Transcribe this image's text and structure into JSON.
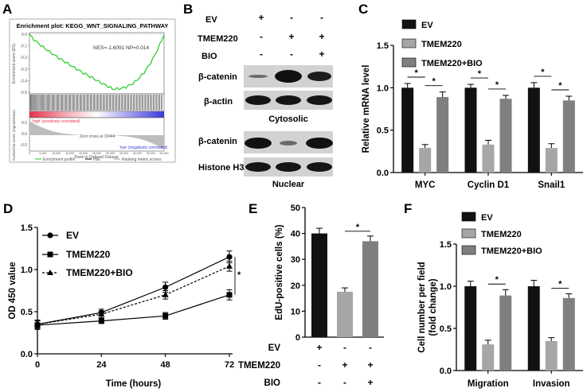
{
  "panels": {
    "A": {
      "letter": "A",
      "title": "Enrichment plot: KEGG_WNT_SIGNALING_PATHWAY",
      "stats": "NES=-1.6091 NP=0.014",
      "ylabel_top": "Enrichment score (ES)",
      "ylabel_bottom": "Ranked list metric (Signal2Noise)",
      "xlabel": "Rank in Ordered Dataset",
      "pos_label": "'high' (positively correlated)",
      "neg_label": "'low' (negatively correlated)",
      "zero_cross": "Zero cross at 10444",
      "es_ticks": [
        "0.0",
        "-0.1",
        "-0.2",
        "-0.3",
        "-0.4",
        "-0.5"
      ],
      "metric_ticks": [
        "0.5",
        "0.0",
        "-0.5"
      ],
      "x_ticks": [
        "0",
        "5,000",
        "10,000",
        "15,000",
        "20,000",
        "25,000",
        "30,000",
        "35,000",
        "40,000",
        "45,000",
        "50,000"
      ],
      "legend": [
        "Enrichment profile",
        "Hits",
        "Ranking metric scores"
      ],
      "colors": {
        "curve": "#22cc22",
        "pos": "#e8314a",
        "neg": "#3a3ad8"
      }
    },
    "B": {
      "letter": "B",
      "conditions": [
        "EV",
        "TMEM220",
        "BIO"
      ],
      "signs": [
        [
          "+",
          "-",
          "-"
        ],
        [
          "-",
          "+",
          "+"
        ],
        [
          "-",
          "-",
          "+"
        ]
      ],
      "bands_cyto": [
        "β-catenin",
        "β-actin"
      ],
      "cyto_label": "Cytosolic",
      "bands_nuc": [
        "β-catenin",
        "Histone H3"
      ],
      "nuc_label": "Nuclear"
    },
    "C": {
      "letter": "C",
      "sig": "*"
    },
    "D": {
      "letter": "D",
      "sig": "*"
    },
    "E": {
      "letter": "E",
      "conditions": [
        "EV",
        "TMEM220",
        "BIO"
      ],
      "signs": [
        [
          "+",
          "-",
          "-"
        ],
        [
          "-",
          "+",
          "+"
        ],
        [
          "-",
          "-",
          "+"
        ]
      ],
      "sig": "*"
    },
    "F": {
      "letter": "F",
      "sig": "*"
    }
  },
  "chart_data": [
    {
      "id": "C",
      "type": "bar",
      "categories": [
        "MYC",
        "Cyclin D1",
        "Snail1"
      ],
      "series": [
        {
          "name": "EV",
          "values": [
            1.0,
            1.0,
            1.0
          ],
          "errors": [
            0.05,
            0.04,
            0.06
          ],
          "color": "#111111"
        },
        {
          "name": "TMEM220",
          "values": [
            0.29,
            0.33,
            0.29
          ],
          "errors": [
            0.04,
            0.05,
            0.05
          ],
          "color": "#a6a6a6"
        },
        {
          "name": "TMEM220+BIO",
          "values": [
            0.89,
            0.87,
            0.85
          ],
          "errors": [
            0.06,
            0.04,
            0.05
          ],
          "color": "#7f7f7f"
        }
      ],
      "ylabel": "Relative mRNA level",
      "ylim": [
        0,
        1.5
      ],
      "yticks": [
        "0.0",
        "0.5",
        "1.0",
        "1.5"
      ]
    },
    {
      "id": "D",
      "type": "line",
      "x": [
        0,
        24,
        48,
        72
      ],
      "xticks": [
        "0",
        "24",
        "48",
        "72"
      ],
      "series": [
        {
          "name": "EV",
          "values": [
            0.35,
            0.49,
            0.79,
            1.15
          ],
          "errors": [
            0.05,
            0.04,
            0.06,
            0.07
          ],
          "marker": "circle",
          "style": "solid"
        },
        {
          "name": "TMEM220",
          "values": [
            0.34,
            0.39,
            0.45,
            0.7
          ],
          "errors": [
            0.05,
            0.03,
            0.04,
            0.06
          ],
          "marker": "square",
          "style": "solid"
        },
        {
          "name": "TMEM220+BIO",
          "values": [
            0.35,
            0.47,
            0.7,
            1.04
          ],
          "errors": [
            0.05,
            0.04,
            0.05,
            0.06
          ],
          "marker": "triangle",
          "style": "dashed"
        }
      ],
      "xlabel": "Time (hours)",
      "ylabel": "OD 450 value",
      "ylim": [
        0,
        1.5
      ],
      "yticks": [
        "0.0",
        "0.5",
        "1.0",
        "1.5"
      ]
    },
    {
      "id": "E",
      "type": "bar",
      "categories": [
        "EV",
        "TMEM220",
        "TMEM220+BIO"
      ],
      "values": [
        40,
        17.5,
        37
      ],
      "errors": [
        2,
        1.5,
        2
      ],
      "colors": [
        "#111111",
        "#a6a6a6",
        "#7f7f7f"
      ],
      "ylabel": "EdU-positive cells (%)",
      "ylim": [
        0,
        50
      ],
      "yticks": [
        "0",
        "10",
        "20",
        "30",
        "40",
        "50"
      ]
    },
    {
      "id": "F",
      "type": "bar",
      "categories": [
        "Migration",
        "Invasion"
      ],
      "series": [
        {
          "name": "EV",
          "values": [
            1.0,
            1.0
          ],
          "errors": [
            0.06,
            0.07
          ],
          "color": "#111111"
        },
        {
          "name": "TMEM220",
          "values": [
            0.31,
            0.35
          ],
          "errors": [
            0.05,
            0.04
          ],
          "color": "#a6a6a6"
        },
        {
          "name": "TMEM220+BIO",
          "values": [
            0.89,
            0.86
          ],
          "errors": [
            0.07,
            0.05
          ],
          "color": "#7f7f7f"
        }
      ],
      "ylabel": "Cell number per field (fold change)",
      "ylabel_lines": [
        "Cell number per field",
        "(fold change)"
      ],
      "ylim": [
        0,
        1.5
      ],
      "yticks": [
        "0.0",
        "0.5",
        "1.0",
        "1.5"
      ]
    }
  ]
}
